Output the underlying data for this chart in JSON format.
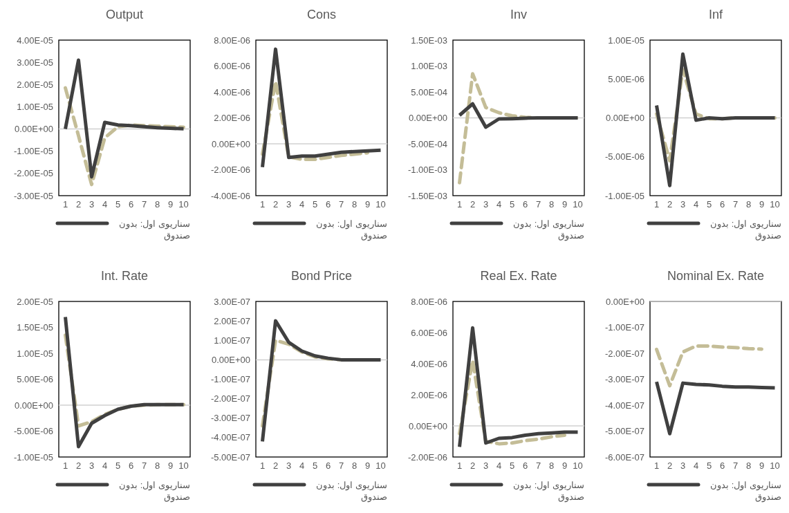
{
  "chart_data": [
    {
      "type": "line",
      "title": "Output",
      "categories": [
        "1",
        "2",
        "3",
        "4",
        "5",
        "6",
        "7",
        "8",
        "9",
        "10"
      ],
      "ylim": [
        -3e-05,
        4e-05
      ],
      "yticks": [
        {
          "value": -3e-05,
          "label": "-3.00E-05"
        },
        {
          "value": -2e-05,
          "label": "-2.00E-05"
        },
        {
          "value": -1e-05,
          "label": "-1.00E-05"
        },
        {
          "value": 0,
          "label": "0.00E+00"
        },
        {
          "value": 1e-05,
          "label": "1.00E-05"
        },
        {
          "value": 2e-05,
          "label": "2.00E-05"
        },
        {
          "value": 3e-05,
          "label": "3.00E-05"
        },
        {
          "value": 4e-05,
          "label": "4.00E-05"
        }
      ],
      "legend": "bottom",
      "series": [
        {
          "name": "سناریوی اول: بدون صندوق",
          "color": "#404040",
          "line_style": "solid",
          "values": [
            0,
            3.1e-05,
            -2.15e-05,
            3e-06,
            1.8e-06,
            1.5e-06,
            1e-06,
            6e-07,
            3e-07,
            1e-07
          ]
        },
        {
          "color": "#c4bd97",
          "line_style": "dashed",
          "values": [
            1.85e-05,
            -3e-06,
            -2.5e-05,
            -4e-06,
            1e-06,
            1.8e-06,
            1.5e-06,
            1.3e-06,
            1e-06,
            8e-07
          ]
        }
      ]
    },
    {
      "type": "line",
      "title": "Cons",
      "categories": [
        "1",
        "2",
        "3",
        "4",
        "5",
        "6",
        "7",
        "8",
        "9",
        "10"
      ],
      "ylim": [
        -4e-06,
        8e-06
      ],
      "yticks": [
        {
          "value": -4e-06,
          "label": "-4.00E-06"
        },
        {
          "value": -2e-06,
          "label": "-2.00E-06"
        },
        {
          "value": 0,
          "label": "0.00E+00"
        },
        {
          "value": 2e-06,
          "label": "2.00E-06"
        },
        {
          "value": 4e-06,
          "label": "4.00E-06"
        },
        {
          "value": 6e-06,
          "label": "6.00E-06"
        },
        {
          "value": 8e-06,
          "label": "8.00E-06"
        }
      ],
      "legend": "bottom",
      "series": [
        {
          "name": "سناریوی اول: بدون صندوق",
          "color": "#404040",
          "line_style": "solid",
          "values": [
            -1.8e-06,
            7.3e-06,
            -1.05e-06,
            -9.5e-07,
            -9.5e-07,
            -8e-07,
            -6.5e-07,
            -6e-07,
            -5.5e-07,
            -5e-07
          ]
        },
        {
          "color": "#c4bd97",
          "line_style": "dashed",
          "values": [
            -8e-07,
            4.8e-06,
            -1e-06,
            -1.2e-06,
            -1.2e-06,
            -1.05e-06,
            -9e-07,
            -8e-07,
            -7e-07,
            null
          ]
        }
      ]
    },
    {
      "type": "line",
      "title": "Inv",
      "categories": [
        "1",
        "2",
        "3",
        "4",
        "5",
        "6",
        "7",
        "8",
        "9",
        "10"
      ],
      "ylim": [
        -0.0015,
        0.0015
      ],
      "yticks": [
        {
          "value": -0.0015,
          "label": "-1.50E-03"
        },
        {
          "value": -0.001,
          "label": "-1.00E-03"
        },
        {
          "value": -0.0005,
          "label": "-5.00E-04"
        },
        {
          "value": 0,
          "label": "0.00E+00"
        },
        {
          "value": 0.0005,
          "label": "5.00E-04"
        },
        {
          "value": 0.001,
          "label": "1.00E-03"
        },
        {
          "value": 0.0015,
          "label": "1.50E-03"
        }
      ],
      "legend": "bottom",
      "series": [
        {
          "name": "سناریوی اول: بدون صندوق",
          "color": "#404040",
          "line_style": "solid",
          "values": [
            5e-05,
            0.00027,
            -0.00018,
            -2e-05,
            -1.5e-05,
            -5e-06,
            0,
            0,
            0,
            0
          ]
        },
        {
          "color": "#c4bd97",
          "line_style": "dashed",
          "values": [
            -0.00125,
            0.00085,
            0.0002,
            0.0001,
            4e-05,
            1e-05,
            0,
            0,
            0,
            0
          ]
        }
      ]
    },
    {
      "type": "line",
      "title": "Inf",
      "categories": [
        "1",
        "2",
        "3",
        "4",
        "5",
        "6",
        "7",
        "8",
        "9",
        "10"
      ],
      "ylim": [
        -1e-05,
        1e-05
      ],
      "yticks": [
        {
          "value": -1e-05,
          "label": "-1.00E-05"
        },
        {
          "value": -5e-06,
          "label": "-5.00E-06"
        },
        {
          "value": 0,
          "label": "0.00E+00"
        },
        {
          "value": 5e-06,
          "label": "5.00E-06"
        },
        {
          "value": 1e-05,
          "label": "1.00E-05"
        }
      ],
      "legend": "bottom",
      "series": [
        {
          "name": "سناریوی اول: بدون صندوق",
          "color": "#404040",
          "line_style": "solid",
          "values": [
            1.6e-06,
            -8.7e-06,
            8.2e-06,
            -3e-07,
            0,
            -1e-07,
            0,
            0,
            0,
            0
          ]
        },
        {
          "color": "#c4bd97",
          "line_style": "dashed",
          "values": [
            5e-07,
            -5.5e-06,
            6.2e-06,
            5e-07,
            -1e-07,
            -1e-07,
            0,
            0,
            0,
            0
          ]
        }
      ]
    },
    {
      "type": "line",
      "title": "Int. Rate",
      "categories": [
        "1",
        "2",
        "3",
        "4",
        "5",
        "6",
        "7",
        "8",
        "9",
        "10"
      ],
      "ylim": [
        -1e-05,
        2e-05
      ],
      "yticks": [
        {
          "value": -1e-05,
          "label": "-1.00E-05"
        },
        {
          "value": -5e-06,
          "label": "-5.00E-06"
        },
        {
          "value": 0,
          "label": "0.00E+00"
        },
        {
          "value": 5e-06,
          "label": "5.00E-06"
        },
        {
          "value": 1e-05,
          "label": "1.00E-05"
        },
        {
          "value": 1.5e-05,
          "label": "1.50E-05"
        },
        {
          "value": 2e-05,
          "label": "2.00E-05"
        }
      ],
      "legend": "bottom",
      "series": [
        {
          "name": "سناریوی اول: بدون صندوق",
          "color": "#404040",
          "line_style": "solid",
          "values": [
            1.7e-05,
            -8e-06,
            -3.5e-06,
            -2e-06,
            -8e-07,
            -2e-07,
            1e-07,
            1e-07,
            1e-07,
            1e-07
          ]
        },
        {
          "color": "#c4bd97",
          "line_style": "dashed",
          "values": [
            1.35e-05,
            -4e-06,
            -3.2e-06,
            -1.8e-06,
            -8e-07,
            -2e-07,
            0,
            1e-07,
            1e-07,
            1e-07
          ]
        }
      ]
    },
    {
      "type": "line",
      "title": "Bond Price",
      "categories": [
        "1",
        "2",
        "3",
        "4",
        "5",
        "6",
        "7",
        "8",
        "9",
        "10"
      ],
      "ylim": [
        -5e-07,
        3e-07
      ],
      "yticks": [
        {
          "value": -5e-07,
          "label": "-5.00E-07"
        },
        {
          "value": -4e-07,
          "label": "-4.00E-07"
        },
        {
          "value": -3e-07,
          "label": "-3.00E-07"
        },
        {
          "value": -2e-07,
          "label": "-2.00E-07"
        },
        {
          "value": -1e-07,
          "label": "-1.00E-07"
        },
        {
          "value": 0,
          "label": "0.00E+00"
        },
        {
          "value": 1e-07,
          "label": "1.00E-07"
        },
        {
          "value": 2e-07,
          "label": "2.00E-07"
        },
        {
          "value": 3e-07,
          "label": "3.00E-07"
        }
      ],
      "legend": "bottom",
      "series": [
        {
          "name": "سناریوی اول: بدون صندوق",
          "color": "#404040",
          "line_style": "solid",
          "values": [
            -4.2e-07,
            2e-07,
            9e-08,
            4.5e-08,
            2e-08,
            8e-09,
            0,
            0,
            0,
            0
          ]
        },
        {
          "color": "#c4bd97",
          "line_style": "dashed",
          "values": [
            -3.4e-07,
            1e-07,
            8e-08,
            4e-08,
            1.5e-08,
            5e-09,
            0,
            0,
            0,
            0
          ]
        }
      ]
    },
    {
      "type": "line",
      "title": "Real Ex. Rate",
      "categories": [
        "1",
        "2",
        "3",
        "4",
        "5",
        "6",
        "7",
        "8",
        "9",
        "10"
      ],
      "ylim": [
        -2e-06,
        8e-06
      ],
      "yticks": [
        {
          "value": -2e-06,
          "label": "-2.00E-06"
        },
        {
          "value": 0,
          "label": "0.00E+00"
        },
        {
          "value": 2e-06,
          "label": "2.00E-06"
        },
        {
          "value": 4e-06,
          "label": "4.00E-06"
        },
        {
          "value": 6e-06,
          "label": "6.00E-06"
        },
        {
          "value": 8e-06,
          "label": "8.00E-06"
        }
      ],
      "legend": "bottom",
      "series": [
        {
          "name": "سناریوی اول: بدون صندوق",
          "color": "#404040",
          "line_style": "solid",
          "values": [
            -1.35e-06,
            6.3e-06,
            -1.1e-06,
            -8e-07,
            -7.5e-07,
            -6e-07,
            -5e-07,
            -4.5e-07,
            -4e-07,
            -4e-07
          ]
        },
        {
          "color": "#c4bd97",
          "line_style": "dashed",
          "values": [
            -5e-07,
            4.2e-06,
            -1e-06,
            -1.15e-06,
            -1.1e-06,
            -9.5e-07,
            -8.5e-07,
            -7e-07,
            -6e-07,
            null
          ]
        }
      ]
    },
    {
      "type": "line",
      "title": "Nominal Ex. Rate",
      "categories": [
        "1",
        "2",
        "3",
        "4",
        "5",
        "6",
        "7",
        "8",
        "9",
        "10"
      ],
      "ylim": [
        -6e-07,
        0
      ],
      "yticks": [
        {
          "value": -6e-07,
          "label": "-6.00E-07"
        },
        {
          "value": -5e-07,
          "label": "-5.00E-07"
        },
        {
          "value": -4e-07,
          "label": "-4.00E-07"
        },
        {
          "value": -3e-07,
          "label": "-3.00E-07"
        },
        {
          "value": -2e-07,
          "label": "-2.00E-07"
        },
        {
          "value": -1e-07,
          "label": "-1.00E-07"
        },
        {
          "value": 0,
          "label": "0.00E+00"
        }
      ],
      "legend": "bottom",
      "series": [
        {
          "name": "سناریوی اول: بدون صندوق",
          "color": "#404040",
          "line_style": "solid",
          "values": [
            -3.1e-07,
            -5.1e-07,
            -3.15e-07,
            -3.2e-07,
            -3.22e-07,
            -3.27e-07,
            -3.3e-07,
            -3.3e-07,
            -3.32e-07,
            -3.33e-07
          ]
        },
        {
          "color": "#c4bd97",
          "line_style": "dashed",
          "values": [
            -1.85e-07,
            -3.25e-07,
            -1.95e-07,
            -1.72e-07,
            -1.72e-07,
            -1.76e-07,
            -1.78e-07,
            -1.82e-07,
            -1.84e-07,
            null
          ]
        }
      ]
    }
  ]
}
